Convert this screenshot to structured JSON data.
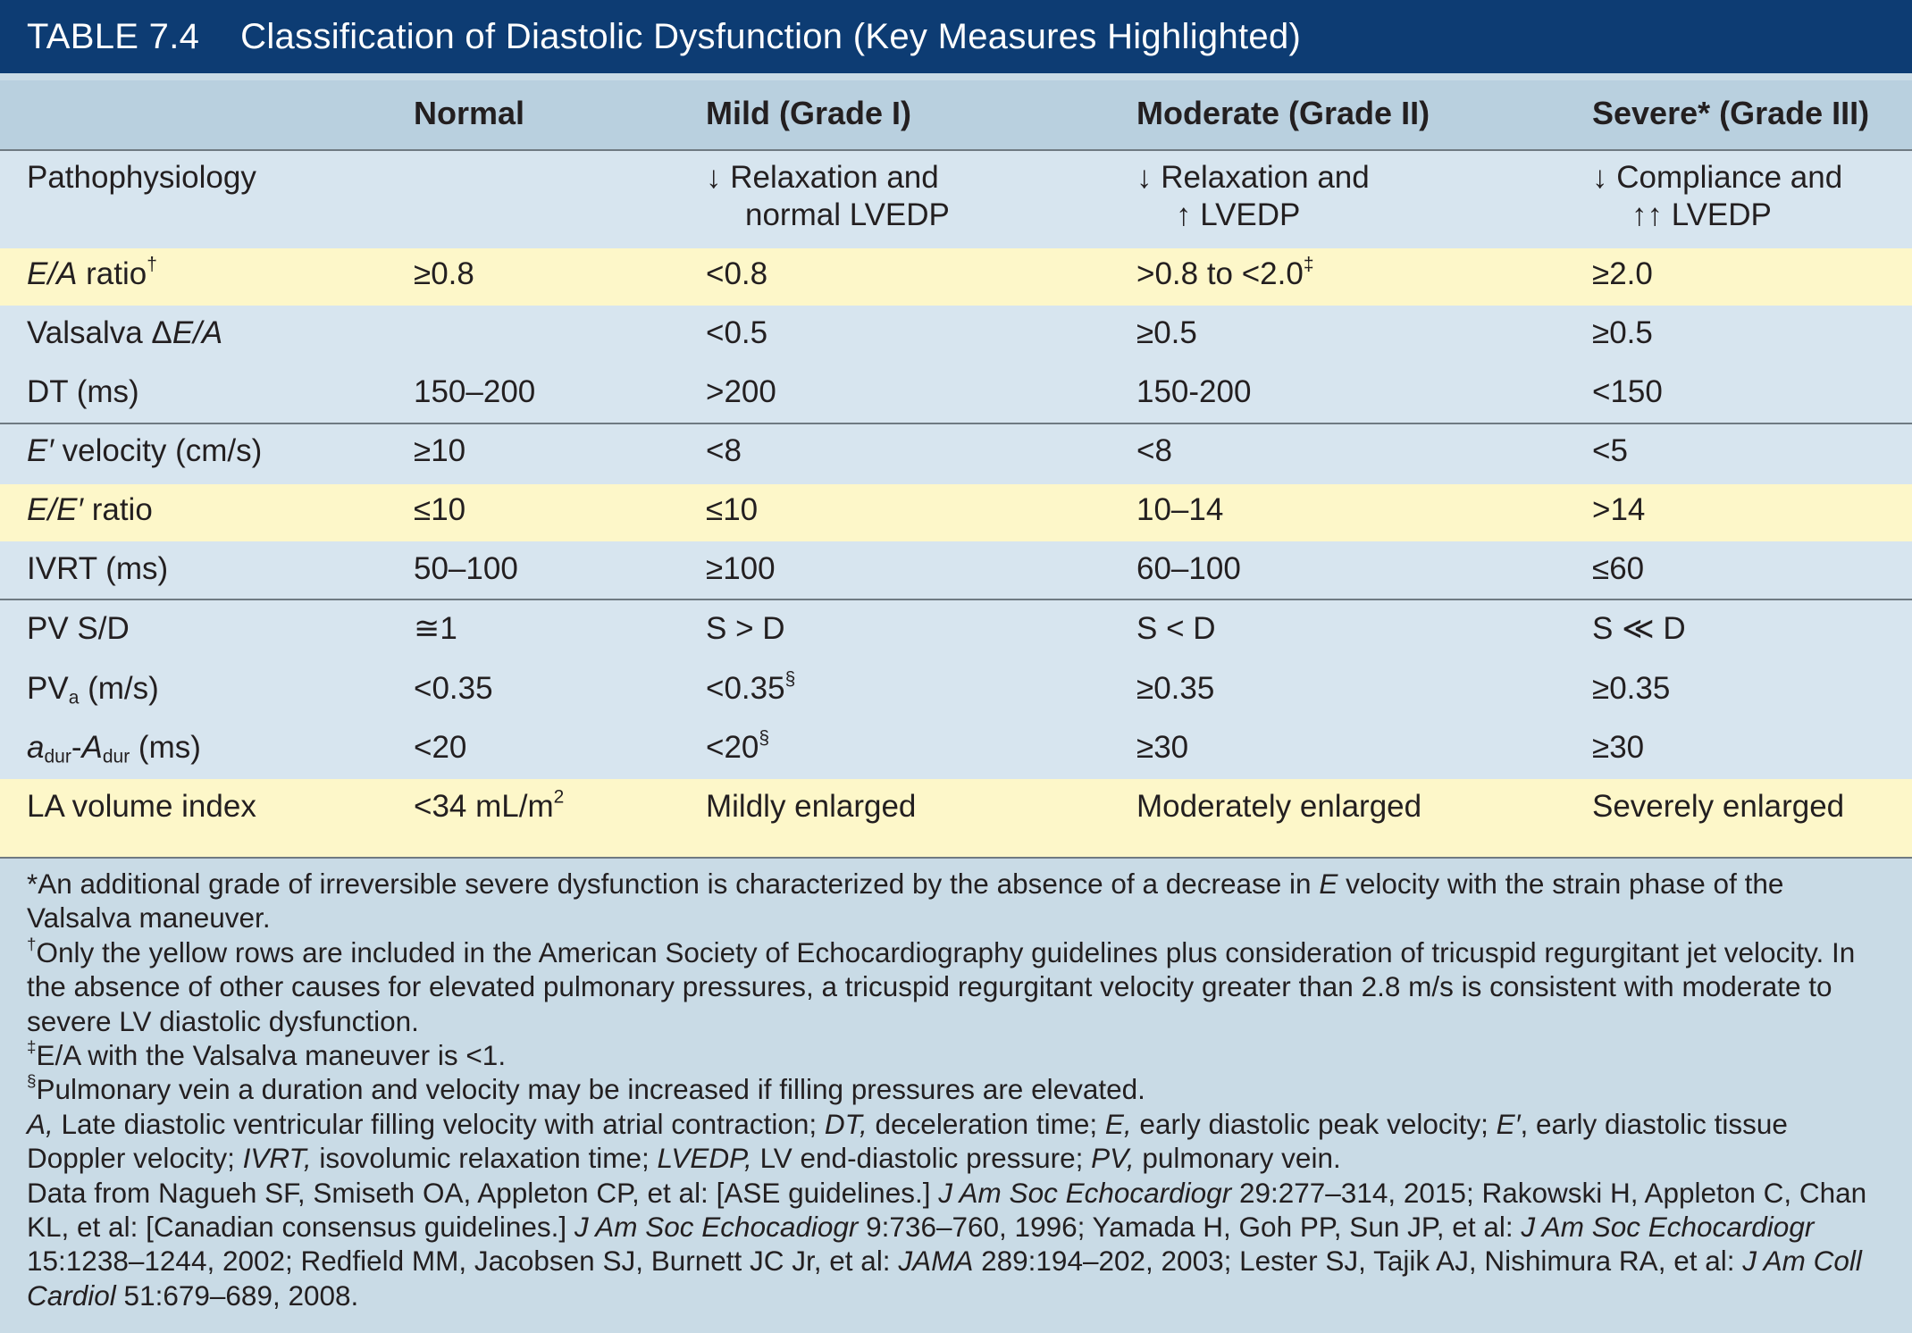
{
  "table": {
    "number": "TABLE 7.4",
    "title": "Classification of Diastolic Dysfunction (Key Measures Highlighted)",
    "columns": [
      "Normal",
      "Mild (Grade I)",
      "Moderate (Grade II)",
      "Severe",
      "* (Grade III)"
    ],
    "colors": {
      "title_bar": "#0d3c73",
      "header_bg": "#b9d0df",
      "row_bg": "#d7e5ef",
      "highlight_bg": "#fdf7c9",
      "notes_bg": "#c9dbe6"
    },
    "rows": [
      {
        "label": "Pathophysiology",
        "highlighted": false,
        "cells": [
          "",
          "↓ Relaxation and",
          "↓ Relaxation and",
          "↓ Compliance and"
        ],
        "cells2": [
          "",
          "normal LVEDP",
          "↑ LVEDP",
          "↑↑ LVEDP"
        ]
      },
      {
        "label": "E/A",
        "label_rest": " ratio",
        "label_mark": "†",
        "highlighted": true,
        "cells": [
          "≥0.8",
          "<0.8",
          ">0.8 to <2.0",
          "≥2.0"
        ],
        "mark": "‡"
      },
      {
        "label": "Valsalva Δ",
        "label_italic": "E/A",
        "highlighted": false,
        "cells": [
          "",
          "<0.5",
          "≥0.5",
          "≥0.5"
        ]
      },
      {
        "label": "DT (ms)",
        "highlighted": false,
        "cells": [
          "150–200",
          ">200",
          "150-200",
          "<150"
        ]
      },
      {
        "label": "E′",
        "label_rest": " velocity (cm/s)",
        "highlighted": false,
        "cells": [
          "≥10",
          "<8",
          "<8",
          "<5"
        ]
      },
      {
        "label": "E/E′",
        "label_rest": " ratio",
        "highlighted": true,
        "cells": [
          "≤10",
          "≤10",
          "10–14",
          ">14"
        ]
      },
      {
        "label": "IVRT (ms)",
        "highlighted": false,
        "cells": [
          "50–100",
          "≥100",
          "60–100",
          "≤60"
        ]
      },
      {
        "label": "PV S/D",
        "highlighted": false,
        "cells": [
          "≅1",
          "S > D",
          "S < D",
          "S ≪ D"
        ]
      },
      {
        "label": "PV",
        "label_sub": "a",
        "label_rest": " (m/s)",
        "highlighted": false,
        "cells": [
          "<0.35",
          "<0.35",
          "≥0.35",
          "≥0.35"
        ],
        "mark": "§"
      },
      {
        "label_a": "a",
        "label_sub1": "dur",
        "label_dash": "-",
        "label_b": "A",
        "label_sub2": "dur",
        "label_rest": " (ms)",
        "highlighted": false,
        "cells": [
          "<20",
          "<20",
          "≥30",
          "≥30"
        ],
        "mark": "§"
      },
      {
        "label": "LA volume index",
        "highlighted": true,
        "cells": [
          "<34 mL/m",
          "Mildly enlarged",
          "Moderately enlarged",
          "Severely enlarged"
        ],
        "sup": "2"
      }
    ]
  },
  "notes": {
    "star": {
      "a": "*An additional grade of irreversible severe dysfunction is characterized by the absence of a decrease in ",
      "b": "E",
      "c": " velocity with the strain phase of the Valsalva maneuver."
    },
    "dagger": {
      "mark": "†",
      "text": "Only the yellow rows are included in the American Society of Echocardiography guidelines plus consideration of tricuspid regurgitant jet velocity. In the absence of other causes for elevated pulmonary pressures, a tricuspid regurgitant velocity greater than 2.8 m/s is consistent with moderate to severe LV diastolic dysfunction."
    },
    "ddagger": {
      "mark": "‡",
      "text": "E/A with the Valsalva maneuver is <1."
    },
    "section": {
      "mark": "§",
      "text": "Pulmonary vein a duration and velocity may be increased if filling pressures are elevated."
    },
    "abbrev": {
      "a1": "A,",
      "a2": " Late diastolic ventricular filling velocity with atrial contraction; ",
      "b1": "DT,",
      "b2": " deceleration time; ",
      "c1": "E,",
      "c2": " early diastolic peak velocity; ",
      "d1": "E′",
      "d2": ", early diastolic tissue Doppler velocity; ",
      "e1": "IVRT,",
      "e2": " isovolumic relaxation time; ",
      "f1": "LVEDP,",
      "f2": " LV end-diastolic pressure; ",
      "g1": "PV,",
      "g2": " pulmonary vein."
    },
    "source": {
      "s1": "Data from Nagueh SF, Smiseth OA, Appleton CP, et al: [ASE guidelines.] ",
      "j1": "J Am Soc Echocardiogr",
      "s2": " 29:277–314, 2015; Rakowski H, Appleton C, Chan KL, et al: [Canadian consensus guidelines.] ",
      "j2": "J Am Soc Echocadiogr",
      "s3": " 9:736–760, 1996; Yamada H, Goh PP, Sun JP, et al: ",
      "j3": "J Am Soc Echocardiogr",
      "s4": " 15:1238–1244, 2002; Redfield MM, Jacobsen SJ, Burnett JC Jr, et al: ",
      "j4": "JAMA",
      "s5": " 289:194–202, 2003; Lester SJ, Tajik AJ, Nishimura RA, et al: ",
      "j5": "J Am Coll Cardiol",
      "s6": " 51:679–689, 2008."
    }
  }
}
